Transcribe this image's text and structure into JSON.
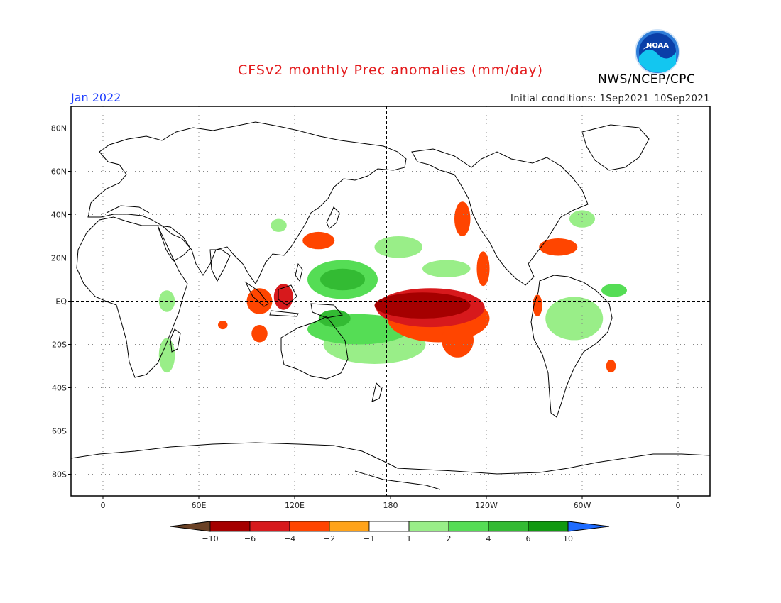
{
  "header": {
    "title": "CFSv2 monthly Prec anomalies (mm/day)",
    "month": "Jan 2022",
    "initial_conditions": "Initial conditions: 1Sep2021–10Sep2021",
    "organization": "NWS/NCEP/CPC",
    "logo_text": "NOAA"
  },
  "map": {
    "projection": "equirectangular",
    "lon_range": [
      -20,
      380
    ],
    "lat_range": [
      -90,
      90
    ],
    "lat_labels": [
      "80N",
      "60N",
      "40N",
      "20N",
      "EQ",
      "20S",
      "40S",
      "60S",
      "80S"
    ],
    "lon_labels": [
      "0",
      "60E",
      "120E",
      "180",
      "120W",
      "60W",
      "0"
    ],
    "reference_lines": [
      "equator",
      "180"
    ]
  },
  "colorbar": {
    "labels": [
      "−10",
      "−6",
      "−4",
      "−2",
      "−1",
      "1",
      "2",
      "4",
      "6",
      "10"
    ],
    "colors": [
      "#6b4226",
      "#a50000",
      "#d7191c",
      "#ff4500",
      "#ffa319",
      "#ffffff",
      "#99ee88",
      "#55dd55",
      "#33bb33",
      "#119911",
      "#1e6bff"
    ]
  },
  "anomaly_regions": {
    "dry": [
      {
        "lon": 200,
        "lat": -2,
        "rx": 30,
        "ry": 6,
        "level": 5
      },
      {
        "lon": 205,
        "lat": -3,
        "rx": 34,
        "ry": 9,
        "level": 3
      },
      {
        "lon": 210,
        "lat": -8,
        "rx": 32,
        "ry": 11,
        "level": 1
      },
      {
        "lon": 222,
        "lat": -18,
        "rx": 10,
        "ry": 8,
        "level": 1
      },
      {
        "lon": 225,
        "lat": 38,
        "rx": 5,
        "ry": 8,
        "level": 1
      },
      {
        "lon": 238,
        "lat": 15,
        "rx": 4,
        "ry": 8,
        "level": 1
      },
      {
        "lon": 285,
        "lat": 25,
        "rx": 12,
        "ry": 4,
        "level": 1
      },
      {
        "lon": 135,
        "lat": 28,
        "rx": 10,
        "ry": 4,
        "level": 1
      },
      {
        "lon": 98,
        "lat": 0,
        "rx": 8,
        "ry": 6,
        "level": 2
      },
      {
        "lon": 113,
        "lat": 2,
        "rx": 6,
        "ry": 6,
        "level": 3
      },
      {
        "lon": 98,
        "lat": -15,
        "rx": 5,
        "ry": 4,
        "level": 2
      },
      {
        "lon": 75,
        "lat": -11,
        "rx": 3,
        "ry": 2,
        "level": 1
      },
      {
        "lon": 272,
        "lat": -2,
        "rx": 3,
        "ry": 5,
        "level": 2
      },
      {
        "lon": 318,
        "lat": -30,
        "rx": 3,
        "ry": 3,
        "level": 1
      },
      {
        "lon": 183,
        "lat": -1,
        "rx": 9,
        "ry": 2,
        "level": 4
      }
    ],
    "wet": [
      {
        "lon": 150,
        "lat": 10,
        "rx": 22,
        "ry": 9,
        "level": 2
      },
      {
        "lon": 150,
        "lat": 10,
        "rx": 14,
        "ry": 5,
        "level": 3
      },
      {
        "lon": 160,
        "lat": -13,
        "rx": 32,
        "ry": 7,
        "level": 2
      },
      {
        "lon": 170,
        "lat": -20,
        "rx": 32,
        "ry": 9,
        "level": 1
      },
      {
        "lon": 145,
        "lat": -8,
        "rx": 10,
        "ry": 4,
        "level": 3
      },
      {
        "lon": 185,
        "lat": 25,
        "rx": 15,
        "ry": 5,
        "level": 1
      },
      {
        "lon": 215,
        "lat": 15,
        "rx": 15,
        "ry": 4,
        "level": 1
      },
      {
        "lon": 295,
        "lat": -8,
        "rx": 18,
        "ry": 10,
        "level": 1
      },
      {
        "lon": 320,
        "lat": 5,
        "rx": 8,
        "ry": 3,
        "level": 2
      },
      {
        "lon": 40,
        "lat": 0,
        "rx": 5,
        "ry": 5,
        "level": 1
      },
      {
        "lon": 110,
        "lat": 35,
        "rx": 5,
        "ry": 3,
        "level": 1
      },
      {
        "lon": 40,
        "lat": -25,
        "rx": 5,
        "ry": 8,
        "level": 1
      },
      {
        "lon": 300,
        "lat": 38,
        "rx": 8,
        "ry": 4,
        "level": 1
      }
    ]
  }
}
